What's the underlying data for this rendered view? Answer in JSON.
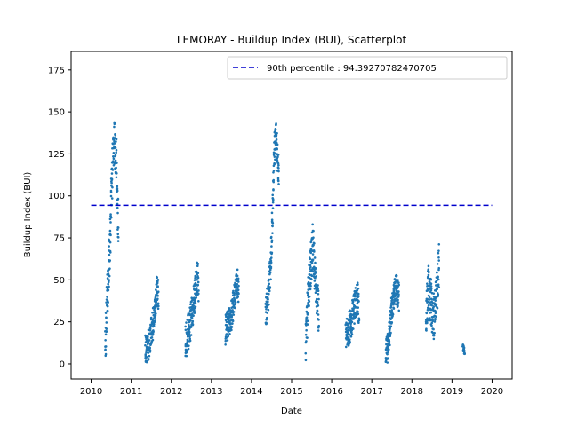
{
  "chart_data": {
    "type": "scatter",
    "title": "LEMORAY - Buildup Index (BUI), Scatterplot",
    "xlabel": "Date",
    "ylabel": "Buildup Index (BUI)",
    "xlim": [
      2009.5,
      2020.5
    ],
    "ylim": [
      -9,
      186
    ],
    "xticks": [
      2010,
      2011,
      2012,
      2013,
      2014,
      2015,
      2016,
      2017,
      2018,
      2019,
      2020
    ],
    "yticks": [
      0,
      25,
      50,
      75,
      100,
      125,
      150,
      175
    ],
    "grid": false,
    "legend_position": "top-right",
    "point_color": "#1f77b4",
    "reference_line": {
      "label": "90th percentile : 94.39270782470705",
      "value": 94.39270782470705,
      "x_range": [
        2010.0,
        2020.0
      ],
      "color": "#0000cc",
      "style": "dashed"
    },
    "seasons": [
      {
        "start": 2010.35,
        "end": 2010.68,
        "profile": [
          [
            0,
            8
          ],
          [
            0.15,
            40
          ],
          [
            0.35,
            70
          ],
          [
            0.55,
            115
          ],
          [
            0.7,
            135
          ],
          [
            0.85,
            120
          ],
          [
            1,
            80
          ]
        ],
        "spread": 14
      },
      {
        "start": 2011.35,
        "end": 2011.68,
        "profile": [
          [
            0,
            8
          ],
          [
            0.3,
            12
          ],
          [
            0.5,
            20
          ],
          [
            0.7,
            30
          ],
          [
            0.9,
            45
          ],
          [
            1,
            40
          ]
        ],
        "spread": 9
      },
      {
        "start": 2012.35,
        "end": 2012.68,
        "profile": [
          [
            0,
            12
          ],
          [
            0.3,
            22
          ],
          [
            0.5,
            30
          ],
          [
            0.7,
            40
          ],
          [
            0.9,
            50
          ],
          [
            1,
            48
          ]
        ],
        "spread": 11
      },
      {
        "start": 2013.35,
        "end": 2013.68,
        "profile": [
          [
            0,
            20
          ],
          [
            0.3,
            25
          ],
          [
            0.5,
            30
          ],
          [
            0.7,
            40
          ],
          [
            0.9,
            48
          ],
          [
            1,
            45
          ]
        ],
        "spread": 9
      },
      {
        "start": 2014.35,
        "end": 2014.68,
        "profile": [
          [
            0,
            28
          ],
          [
            0.2,
            40
          ],
          [
            0.4,
            60
          ],
          [
            0.55,
            95
          ],
          [
            0.65,
            125
          ],
          [
            0.8,
            140
          ],
          [
            0.9,
            125
          ],
          [
            1,
            115
          ]
        ],
        "spread": 10
      },
      {
        "start": 2015.35,
        "end": 2015.68,
        "profile": [
          [
            0,
            15
          ],
          [
            0.2,
            40
          ],
          [
            0.4,
            60
          ],
          [
            0.55,
            70
          ],
          [
            0.7,
            55
          ],
          [
            0.85,
            40
          ],
          [
            1,
            30
          ]
        ],
        "spread": 14
      },
      {
        "start": 2016.35,
        "end": 2016.68,
        "profile": [
          [
            0,
            18
          ],
          [
            0.3,
            22
          ],
          [
            0.5,
            28
          ],
          [
            0.7,
            35
          ],
          [
            0.9,
            40
          ],
          [
            1,
            30
          ]
        ],
        "spread": 10
      },
      {
        "start": 2017.35,
        "end": 2017.68,
        "profile": [
          [
            0,
            6
          ],
          [
            0.2,
            12
          ],
          [
            0.4,
            30
          ],
          [
            0.6,
            40
          ],
          [
            0.8,
            45
          ],
          [
            1,
            40
          ]
        ],
        "spread": 9
      },
      {
        "start": 2018.35,
        "end": 2018.68,
        "profile": [
          [
            0,
            30
          ],
          [
            0.2,
            45
          ],
          [
            0.4,
            35
          ],
          [
            0.6,
            28
          ],
          [
            0.8,
            40
          ],
          [
            1,
            60
          ]
        ],
        "spread": 14
      },
      {
        "start": 2019.27,
        "end": 2019.32,
        "profile": [
          [
            0,
            10
          ],
          [
            1,
            7
          ]
        ],
        "spread": 2
      }
    ]
  }
}
